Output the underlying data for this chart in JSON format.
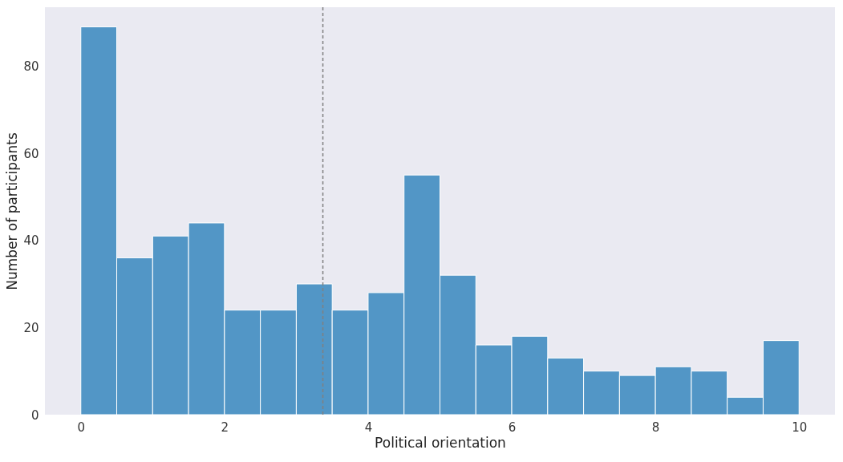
{
  "chart_data": {
    "type": "histogram",
    "xlabel": "Political orientation",
    "ylabel": "Number of participants",
    "bins": [
      0,
      0.5,
      1,
      1.5,
      2,
      2.5,
      3,
      3.5,
      4,
      4.5,
      5,
      5.5,
      6,
      6.5,
      7,
      7.5,
      8,
      8.5,
      9,
      9.5,
      10
    ],
    "values": [
      89,
      36,
      41,
      44,
      24,
      24,
      30,
      24,
      28,
      55,
      32,
      16,
      18,
      13,
      10,
      9,
      11,
      10,
      4,
      17
    ],
    "color": "#5296c6",
    "xlim": [
      -0.5,
      10.5
    ],
    "xticks": [
      0,
      2,
      4,
      6,
      8,
      10
    ],
    "ylim": [
      0,
      93.5
    ],
    "yticks": [
      0,
      20,
      40,
      60,
      80
    ],
    "grid": false,
    "ref_lines": [
      {
        "axis": "x",
        "value": 3.37,
        "color": "#808080",
        "line_style": "dashed"
      }
    ]
  }
}
